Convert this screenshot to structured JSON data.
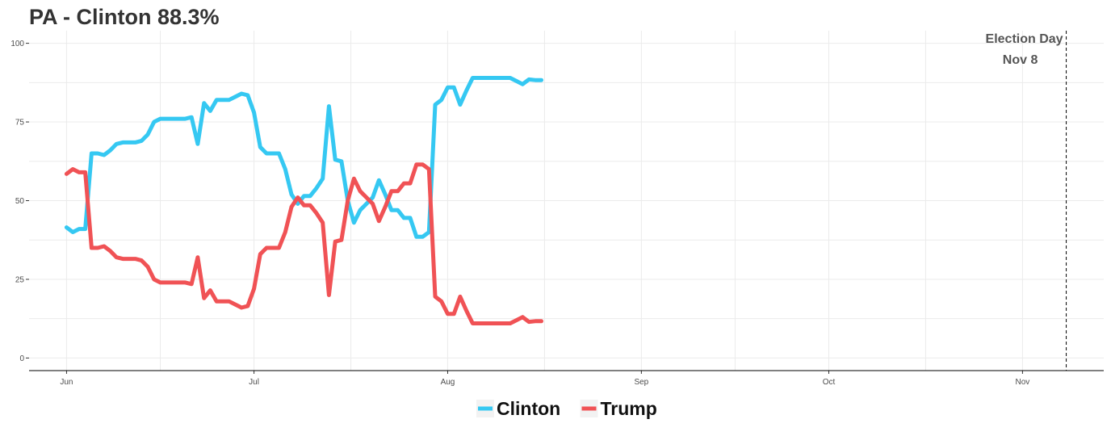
{
  "header": {
    "title": "PA  -  Clinton 88.3%"
  },
  "chart_data": {
    "type": "line",
    "title": "PA  -  Clinton 88.3%",
    "xlabel": "",
    "ylabel": "",
    "ylim": [
      -4,
      104
    ],
    "xlim": [
      "2016-05-26",
      "2016-11-14"
    ],
    "grid": true,
    "legend_position": "bottom",
    "y_ticks": [
      0,
      25,
      50,
      75,
      100
    ],
    "x_ticks": [
      {
        "date": "2016-06-01",
        "label": "Jun"
      },
      {
        "date": "2016-07-01",
        "label": "Jul"
      },
      {
        "date": "2016-08-01",
        "label": "Aug"
      },
      {
        "date": "2016-09-01",
        "label": "Sep"
      },
      {
        "date": "2016-10-01",
        "label": "Oct"
      },
      {
        "date": "2016-11-01",
        "label": "Nov"
      }
    ],
    "annotation": {
      "date": "2016-11-08",
      "line1": "Election Day",
      "line2": "Nov 8"
    },
    "series": [
      {
        "name": "Clinton",
        "color": "#35C8F2",
        "points": [
          [
            "2016-06-01",
            41.5
          ],
          [
            "2016-06-02",
            40
          ],
          [
            "2016-06-03",
            41
          ],
          [
            "2016-06-04",
            41
          ],
          [
            "2016-06-05",
            65
          ],
          [
            "2016-06-06",
            65
          ],
          [
            "2016-06-07",
            64.5
          ],
          [
            "2016-06-08",
            66
          ],
          [
            "2016-06-09",
            68
          ],
          [
            "2016-06-10",
            68.5
          ],
          [
            "2016-06-11",
            68.5
          ],
          [
            "2016-06-12",
            68.5
          ],
          [
            "2016-06-13",
            69
          ],
          [
            "2016-06-14",
            71
          ],
          [
            "2016-06-15",
            75
          ],
          [
            "2016-06-16",
            76
          ],
          [
            "2016-06-17",
            76
          ],
          [
            "2016-06-18",
            76
          ],
          [
            "2016-06-19",
            76
          ],
          [
            "2016-06-20",
            76
          ],
          [
            "2016-06-21",
            76.5
          ],
          [
            "2016-06-22",
            68
          ],
          [
            "2016-06-23",
            81
          ],
          [
            "2016-06-24",
            78.5
          ],
          [
            "2016-06-25",
            82
          ],
          [
            "2016-06-26",
            82
          ],
          [
            "2016-06-27",
            82
          ],
          [
            "2016-06-28",
            83
          ],
          [
            "2016-06-29",
            84
          ],
          [
            "2016-06-30",
            83.5
          ],
          [
            "2016-07-01",
            78
          ],
          [
            "2016-07-02",
            67
          ],
          [
            "2016-07-03",
            65
          ],
          [
            "2016-07-04",
            65
          ],
          [
            "2016-07-05",
            65
          ],
          [
            "2016-07-06",
            60
          ],
          [
            "2016-07-07",
            52
          ],
          [
            "2016-07-08",
            49
          ],
          [
            "2016-07-09",
            51.5
          ],
          [
            "2016-07-10",
            51.5
          ],
          [
            "2016-07-11",
            54
          ],
          [
            "2016-07-12",
            57
          ],
          [
            "2016-07-13",
            80
          ],
          [
            "2016-07-14",
            63
          ],
          [
            "2016-07-15",
            62.5
          ],
          [
            "2016-07-16",
            50
          ],
          [
            "2016-07-17",
            43
          ],
          [
            "2016-07-18",
            47
          ],
          [
            "2016-07-19",
            49
          ],
          [
            "2016-07-20",
            51
          ],
          [
            "2016-07-21",
            56.5
          ],
          [
            "2016-07-22",
            52
          ],
          [
            "2016-07-23",
            47
          ],
          [
            "2016-07-24",
            47
          ],
          [
            "2016-07-25",
            44.5
          ],
          [
            "2016-07-26",
            44.5
          ],
          [
            "2016-07-27",
            38.5
          ],
          [
            "2016-07-28",
            38.5
          ],
          [
            "2016-07-29",
            40
          ],
          [
            "2016-07-30",
            80.5
          ],
          [
            "2016-07-31",
            82
          ],
          [
            "2016-08-01",
            86
          ],
          [
            "2016-08-02",
            86
          ],
          [
            "2016-08-03",
            80.5
          ],
          [
            "2016-08-04",
            85
          ],
          [
            "2016-08-05",
            89
          ],
          [
            "2016-08-06",
            89
          ],
          [
            "2016-08-07",
            89
          ],
          [
            "2016-08-08",
            89
          ],
          [
            "2016-08-09",
            89
          ],
          [
            "2016-08-10",
            89
          ],
          [
            "2016-08-11",
            89
          ],
          [
            "2016-08-12",
            88
          ],
          [
            "2016-08-13",
            87
          ],
          [
            "2016-08-14",
            88.5
          ],
          [
            "2016-08-15",
            88.3
          ],
          [
            "2016-08-16",
            88.3
          ]
        ]
      },
      {
        "name": "Trump",
        "color": "#F05255",
        "points": [
          [
            "2016-06-01",
            58.5
          ],
          [
            "2016-06-02",
            60
          ],
          [
            "2016-06-03",
            59
          ],
          [
            "2016-06-04",
            59
          ],
          [
            "2016-06-05",
            35
          ],
          [
            "2016-06-06",
            35
          ],
          [
            "2016-06-07",
            35.5
          ],
          [
            "2016-06-08",
            34
          ],
          [
            "2016-06-09",
            32
          ],
          [
            "2016-06-10",
            31.5
          ],
          [
            "2016-06-11",
            31.5
          ],
          [
            "2016-06-12",
            31.5
          ],
          [
            "2016-06-13",
            31
          ],
          [
            "2016-06-14",
            29
          ],
          [
            "2016-06-15",
            25
          ],
          [
            "2016-06-16",
            24
          ],
          [
            "2016-06-17",
            24
          ],
          [
            "2016-06-18",
            24
          ],
          [
            "2016-06-19",
            24
          ],
          [
            "2016-06-20",
            24
          ],
          [
            "2016-06-21",
            23.5
          ],
          [
            "2016-06-22",
            32
          ],
          [
            "2016-06-23",
            19
          ],
          [
            "2016-06-24",
            21.5
          ],
          [
            "2016-06-25",
            18
          ],
          [
            "2016-06-26",
            18
          ],
          [
            "2016-06-27",
            18
          ],
          [
            "2016-06-28",
            17
          ],
          [
            "2016-06-29",
            16
          ],
          [
            "2016-06-30",
            16.5
          ],
          [
            "2016-07-01",
            22
          ],
          [
            "2016-07-02",
            33
          ],
          [
            "2016-07-03",
            35
          ],
          [
            "2016-07-04",
            35
          ],
          [
            "2016-07-05",
            35
          ],
          [
            "2016-07-06",
            40
          ],
          [
            "2016-07-07",
            48
          ],
          [
            "2016-07-08",
            51
          ],
          [
            "2016-07-09",
            48.5
          ],
          [
            "2016-07-10",
            48.5
          ],
          [
            "2016-07-11",
            46
          ],
          [
            "2016-07-12",
            43
          ],
          [
            "2016-07-13",
            20
          ],
          [
            "2016-07-14",
            37
          ],
          [
            "2016-07-15",
            37.5
          ],
          [
            "2016-07-16",
            50
          ],
          [
            "2016-07-17",
            57
          ],
          [
            "2016-07-18",
            53
          ],
          [
            "2016-07-19",
            51
          ],
          [
            "2016-07-20",
            49
          ],
          [
            "2016-07-21",
            43.5
          ],
          [
            "2016-07-22",
            48
          ],
          [
            "2016-07-23",
            53
          ],
          [
            "2016-07-24",
            53
          ],
          [
            "2016-07-25",
            55.5
          ],
          [
            "2016-07-26",
            55.5
          ],
          [
            "2016-07-27",
            61.5
          ],
          [
            "2016-07-28",
            61.5
          ],
          [
            "2016-07-29",
            60
          ],
          [
            "2016-07-30",
            19.5
          ],
          [
            "2016-07-31",
            18
          ],
          [
            "2016-08-01",
            14
          ],
          [
            "2016-08-02",
            14
          ],
          [
            "2016-08-03",
            19.5
          ],
          [
            "2016-08-04",
            15
          ],
          [
            "2016-08-05",
            11
          ],
          [
            "2016-08-06",
            11
          ],
          [
            "2016-08-07",
            11
          ],
          [
            "2016-08-08",
            11
          ],
          [
            "2016-08-09",
            11
          ],
          [
            "2016-08-10",
            11
          ],
          [
            "2016-08-11",
            11
          ],
          [
            "2016-08-12",
            12
          ],
          [
            "2016-08-13",
            13
          ],
          [
            "2016-08-14",
            11.5
          ],
          [
            "2016-08-15",
            11.7
          ],
          [
            "2016-08-16",
            11.7
          ]
        ]
      }
    ]
  }
}
